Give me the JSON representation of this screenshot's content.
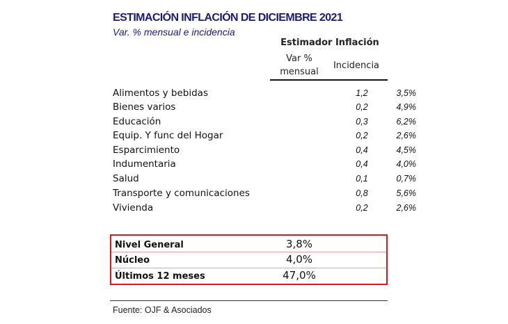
{
  "title": "ESTIMACIÓN INFLACIÓN DE DICIEMBRE 2021",
  "subtitle": "Var. % mensual e incidencia",
  "header": {
    "group": "Estimador Inflación",
    "var_line1": "Var %",
    "var_line2": "mensual",
    "incidencia": "Incidencia"
  },
  "rows": [
    {
      "label": "Alimentos y bebidas",
      "var": "3,5%",
      "inc": "1,2"
    },
    {
      "label": "Bienes varios",
      "var": "4,9%",
      "inc": "0,2"
    },
    {
      "label": "Educación",
      "var": "6,2%",
      "inc": "0,3"
    },
    {
      "label": "Equip. Y func del Hogar",
      "var": "2,6%",
      "inc": "0,2"
    },
    {
      "label": "Esparcimiento",
      "var": "4,5%",
      "inc": "0,4"
    },
    {
      "label": "Indumentaria",
      "var": "4,0%",
      "inc": "0,4"
    },
    {
      "label": "Salud",
      "var": "0,7%",
      "inc": "0,1"
    },
    {
      "label": "Transporte y comunicaciones",
      "var": "5,6%",
      "inc": "0,8"
    },
    {
      "label": "Vivienda",
      "var": "2,6%",
      "inc": "0,2"
    }
  ],
  "summary": [
    {
      "label": "Nivel General",
      "value": "3,8%"
    },
    {
      "label": "Núcleo",
      "value": "4,0%"
    },
    {
      "label": "Últimos 12 meses",
      "value": "47,0%"
    }
  ],
  "highlight_color": "#e8141b",
  "title_color": "#1a1a7e",
  "source": "Fuente: OJF & Asociados"
}
